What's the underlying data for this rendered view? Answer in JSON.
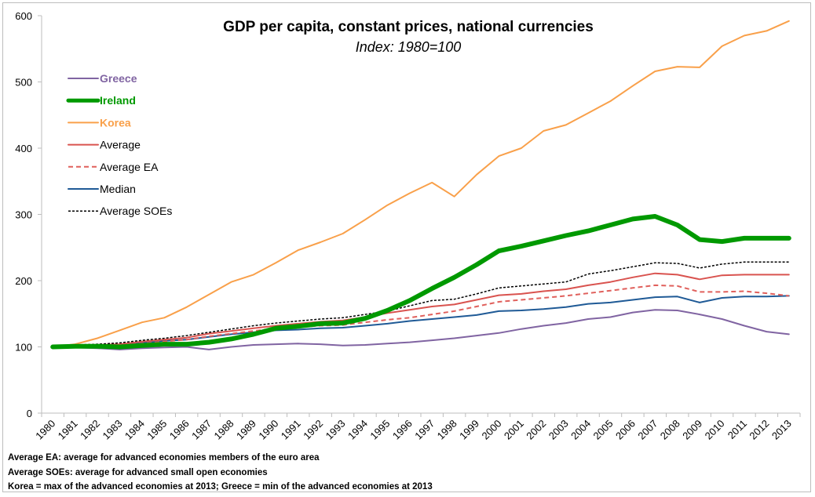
{
  "chart_data": {
    "type": "line",
    "title": "GDP per capita, constant prices, national currencies",
    "subtitle": "Index: 1980=100",
    "xlabel": "",
    "ylabel": "",
    "ylim": [
      0,
      600
    ],
    "yticks": [
      "0",
      "100",
      "200",
      "300",
      "400",
      "500",
      "600"
    ],
    "grid": false,
    "legend_position": "top-left",
    "categories": [
      "1980",
      "1981",
      "1982",
      "1983",
      "1984",
      "1985",
      "1986",
      "1987",
      "1988",
      "1989",
      "1990",
      "1991",
      "1992",
      "1993",
      "1994",
      "1995",
      "1996",
      "1997",
      "1998",
      "1999",
      "2000",
      "2001",
      "2002",
      "2003",
      "2004",
      "2005",
      "2006",
      "2007",
      "2008",
      "2009",
      "2010",
      "2011",
      "2012",
      "2013"
    ],
    "series": [
      {
        "name": "Greece",
        "color": "#8064A2",
        "style": "solid",
        "weight": "normal",
        "label_color": "#8064A2",
        "label_bold": true,
        "values": [
          100,
          99,
          98,
          96,
          98,
          99,
          100,
          96,
          100,
          103,
          104,
          105,
          104,
          102,
          103,
          105,
          107,
          110,
          113,
          117,
          121,
          127,
          132,
          136,
          142,
          145,
          152,
          156,
          155,
          149,
          142,
          132,
          123,
          119
        ]
      },
      {
        "name": "Ireland",
        "color": "#009900",
        "style": "solid",
        "weight": "thick",
        "label_color": "#009900",
        "label_bold": true,
        "values": [
          100,
          101,
          101,
          100,
          102,
          104,
          104,
          107,
          112,
          119,
          128,
          131,
          135,
          136,
          143,
          155,
          170,
          188,
          205,
          224,
          245,
          252,
          260,
          268,
          275,
          284,
          293,
          297,
          284,
          262,
          259,
          264,
          264,
          264
        ]
      },
      {
        "name": "Korea",
        "color": "#F9A04A",
        "style": "solid",
        "weight": "normal",
        "label_color": "#F9A04A",
        "label_bold": true,
        "values": [
          100,
          104,
          113,
          125,
          137,
          144,
          160,
          179,
          198,
          209,
          227,
          246,
          258,
          271,
          292,
          314,
          332,
          348,
          327,
          360,
          388,
          400,
          426,
          435,
          453,
          471,
          494,
          516,
          523,
          522,
          554,
          570,
          577,
          592
        ]
      },
      {
        "name": "Average",
        "color": "#D9534F",
        "style": "solid",
        "weight": "normal",
        "label_color": "#000000",
        "label_bold": false,
        "values": [
          100,
          102,
          103,
          104,
          108,
          111,
          114,
          120,
          124,
          128,
          132,
          135,
          138,
          140,
          145,
          151,
          156,
          161,
          164,
          171,
          178,
          180,
          184,
          187,
          193,
          198,
          205,
          211,
          209,
          202,
          208,
          209,
          209,
          209
        ]
      },
      {
        "name": "Average EA",
        "color": "#E0605C",
        "style": "dashed",
        "weight": "normal",
        "label_color": "#000000",
        "label_bold": false,
        "values": [
          100,
          101,
          101,
          102,
          105,
          108,
          111,
          116,
          120,
          124,
          128,
          130,
          132,
          133,
          137,
          141,
          144,
          149,
          154,
          161,
          168,
          171,
          174,
          177,
          181,
          185,
          189,
          193,
          192,
          183,
          183,
          184,
          181,
          177
        ]
      },
      {
        "name": "Median",
        "color": "#1F5A96",
        "style": "solid",
        "weight": "normal",
        "label_color": "#000000",
        "label_bold": false,
        "values": [
          100,
          101,
          102,
          103,
          106,
          109,
          111,
          115,
          119,
          122,
          125,
          126,
          128,
          129,
          132,
          135,
          139,
          142,
          145,
          148,
          154,
          155,
          157,
          160,
          165,
          167,
          171,
          175,
          176,
          167,
          174,
          176,
          176,
          177
        ]
      },
      {
        "name": "Average SOEs",
        "color": "#000000",
        "style": "dotted",
        "weight": "normal",
        "label_color": "#000000",
        "label_bold": false,
        "values": [
          100,
          103,
          104,
          106,
          110,
          113,
          117,
          122,
          127,
          132,
          136,
          139,
          142,
          144,
          149,
          154,
          162,
          170,
          172,
          180,
          189,
          192,
          195,
          198,
          210,
          215,
          221,
          227,
          226,
          219,
          225,
          228,
          228,
          228
        ]
      }
    ]
  },
  "footnotes": [
    "Average EA: average for advanced economies members of the euro area",
    "Average SOEs: average for advanced small open economies",
    "Korea = max of the advanced economies at 2013; Greece = min of the advanced economies at 2013"
  ]
}
